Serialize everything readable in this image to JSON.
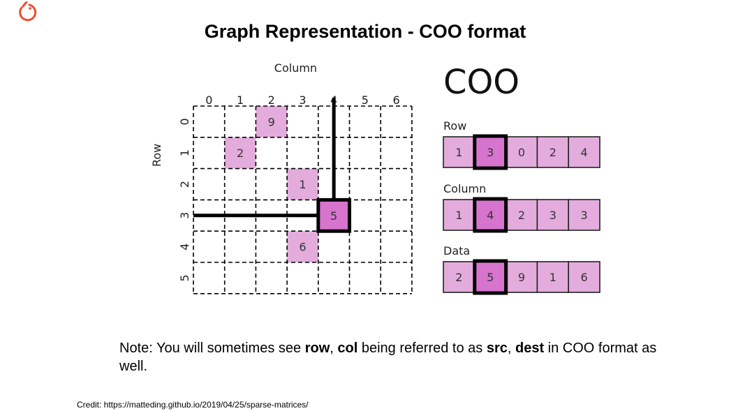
{
  "title": "Graph Representation - COO format",
  "logo": {
    "icon": "pytorch-flame-icon",
    "color": "#ee4c2c"
  },
  "matrix": {
    "column_axis_label": "Column",
    "row_axis_label": "Row",
    "column_ticks": [
      "0",
      "1",
      "2",
      "3",
      "4",
      "5",
      "6"
    ],
    "row_ticks": [
      "0",
      "1",
      "2",
      "3",
      "4",
      "5"
    ],
    "cells": [
      {
        "row": 0,
        "col": 2,
        "value": "9",
        "highlighted": false
      },
      {
        "row": 1,
        "col": 1,
        "value": "2",
        "highlighted": false
      },
      {
        "row": 2,
        "col": 3,
        "value": "1",
        "highlighted": false
      },
      {
        "row": 3,
        "col": 4,
        "value": "5",
        "highlighted": true
      },
      {
        "row": 4,
        "col": 3,
        "value": "6",
        "highlighted": false
      }
    ],
    "highlight": {
      "row": 3,
      "col": 4
    }
  },
  "coo": {
    "heading": "COO",
    "arrays": [
      {
        "label": "Row",
        "values": [
          "1",
          "3",
          "0",
          "2",
          "4"
        ]
      },
      {
        "label": "Column",
        "values": [
          "1",
          "4",
          "2",
          "3",
          "3"
        ]
      },
      {
        "label": "Data",
        "values": [
          "2",
          "5",
          "9",
          "1",
          "6"
        ]
      }
    ],
    "highlight_index": 1
  },
  "colors": {
    "cell_fill": "#e3acdc",
    "highlight_fill": "#d774ce",
    "grid_line": "#000000"
  },
  "note": {
    "parts": [
      {
        "text": "Note: You will sometimes see ",
        "bold": false
      },
      {
        "text": "row",
        "bold": true
      },
      {
        "text": ", ",
        "bold": false
      },
      {
        "text": "col",
        "bold": true
      },
      {
        "text": " being referred to as ",
        "bold": false
      },
      {
        "text": "src",
        "bold": true
      },
      {
        "text": ", ",
        "bold": false
      },
      {
        "text": "dest",
        "bold": true
      },
      {
        "text": " in COO format as well.",
        "bold": false
      }
    ]
  },
  "credit": "Credit: https://matteding.github.io/2019/04/25/sparse-matrices/"
}
